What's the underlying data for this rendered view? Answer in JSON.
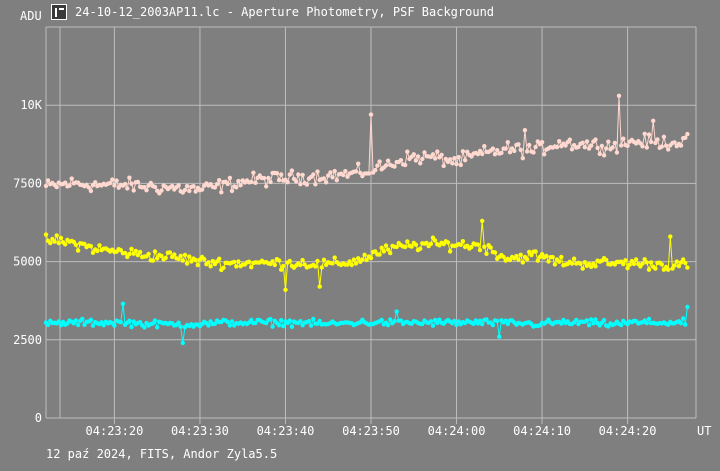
{
  "window": {
    "title": "24-10-12_2003AP11.lc - Aperture Photometry, PSF Background",
    "icon": "light-curve-app-icon"
  },
  "footer": {
    "text": "12 paź 2024, FITS, Andor Zyla5.5"
  },
  "colors": {
    "background": "#7f7f7f",
    "grid": "#bdbdbd",
    "text": "#ffffff",
    "series_pink": "#ffd8d0",
    "series_yellow": "#ffff00",
    "series_cyan": "#00ffff"
  },
  "chart_data": {
    "type": "line",
    "ylabel": "ADU",
    "xlabel": "UT",
    "ylim": [
      0,
      12500
    ],
    "xlim": [
      "04:23:12",
      "04:24:28"
    ],
    "grid": true,
    "y_ticks": [
      {
        "value": 0,
        "label": "0"
      },
      {
        "value": 2500,
        "label": "2500"
      },
      {
        "value": 5000,
        "label": "5000"
      },
      {
        "value": 7500,
        "label": "7500"
      },
      {
        "value": 10000,
        "label": "10K"
      }
    ],
    "x_ticks": [
      {
        "time": "04:23:20",
        "label": "04:23:20"
      },
      {
        "time": "04:23:30",
        "label": "04:23:30"
      },
      {
        "time": "04:23:40",
        "label": "04:23:40"
      },
      {
        "time": "04:23:50",
        "label": "04:23:50"
      },
      {
        "time": "04:24:00",
        "label": "04:24:00"
      },
      {
        "time": "04:24:10",
        "label": "04:24:10"
      },
      {
        "time": "04:24:20",
        "label": "04:24:20"
      }
    ],
    "series": [
      {
        "color": "#ffd8d0",
        "times": [
          "04:23:12",
          "04:23:15",
          "04:23:18",
          "04:23:21",
          "04:23:24",
          "04:23:27",
          "04:23:30",
          "04:23:33",
          "04:23:36",
          "04:23:39",
          "04:23:42",
          "04:23:45",
          "04:23:48",
          "04:23:51",
          "04:23:54",
          "04:23:57",
          "04:24:00",
          "04:24:03",
          "04:24:06",
          "04:24:09",
          "04:24:12",
          "04:24:15",
          "04:24:18",
          "04:24:21",
          "04:24:24",
          "04:24:27"
        ],
        "values": [
          7400,
          7500,
          7450,
          7450,
          7400,
          7350,
          7300,
          7450,
          7600,
          7650,
          7700,
          7750,
          7800,
          8000,
          8300,
          8350,
          8200,
          8450,
          8600,
          8550,
          8800,
          8750,
          8700,
          8850,
          8800,
          8850
        ],
        "noise": 330,
        "spikes": [
          {
            "time": "04:23:50",
            "value": 9700
          },
          {
            "time": "04:24:19",
            "value": 10300
          },
          {
            "time": "04:24:23",
            "value": 9500
          },
          {
            "time": "04:24:08",
            "value": 9200
          }
        ]
      },
      {
        "color": "#ffff00",
        "times": [
          "04:23:12",
          "04:23:15",
          "04:23:18",
          "04:23:21",
          "04:23:24",
          "04:23:27",
          "04:23:30",
          "04:23:33",
          "04:23:36",
          "04:23:39",
          "04:23:42",
          "04:23:45",
          "04:23:48",
          "04:23:51",
          "04:23:54",
          "04:23:57",
          "04:24:00",
          "04:24:03",
          "04:24:06",
          "04:24:09",
          "04:24:12",
          "04:24:15",
          "04:24:18",
          "04:24:21",
          "04:24:24",
          "04:24:27"
        ],
        "values": [
          5700,
          5600,
          5400,
          5300,
          5200,
          5150,
          5000,
          4950,
          4950,
          4950,
          4950,
          4900,
          5000,
          5300,
          5500,
          5550,
          5550,
          5500,
          5100,
          5200,
          5000,
          4950,
          4950,
          4950,
          4900,
          4900
        ],
        "noise": 260,
        "spikes": [
          {
            "time": "04:24:03",
            "value": 6300
          },
          {
            "time": "04:24:25",
            "value": 5800
          },
          {
            "time": "04:23:40",
            "value": 4100
          },
          {
            "time": "04:23:44",
            "value": 4200
          }
        ]
      },
      {
        "color": "#00ffff",
        "times": [
          "04:23:12",
          "04:23:15",
          "04:23:18",
          "04:23:21",
          "04:23:24",
          "04:23:27",
          "04:23:30",
          "04:23:33",
          "04:23:36",
          "04:23:39",
          "04:23:42",
          "04:23:45",
          "04:23:48",
          "04:23:51",
          "04:23:54",
          "04:23:57",
          "04:24:00",
          "04:24:03",
          "04:24:06",
          "04:24:09",
          "04:24:12",
          "04:24:15",
          "04:24:18",
          "04:24:21",
          "04:24:24",
          "04:24:27"
        ],
        "values": [
          3000,
          3050,
          3050,
          3050,
          3000,
          3000,
          3000,
          3050,
          3050,
          3050,
          3050,
          3000,
          3050,
          3050,
          3050,
          3050,
          3050,
          3050,
          3050,
          3000,
          3050,
          3050,
          3000,
          3050,
          3050,
          3050
        ],
        "noise": 160,
        "spikes": [
          {
            "time": "04:23:21",
            "value": 3650
          },
          {
            "time": "04:23:28",
            "value": 2400
          },
          {
            "time": "04:24:27",
            "value": 3550
          },
          {
            "time": "04:24:05",
            "value": 2600
          },
          {
            "time": "04:23:53",
            "value": 3400
          }
        ]
      }
    ]
  }
}
